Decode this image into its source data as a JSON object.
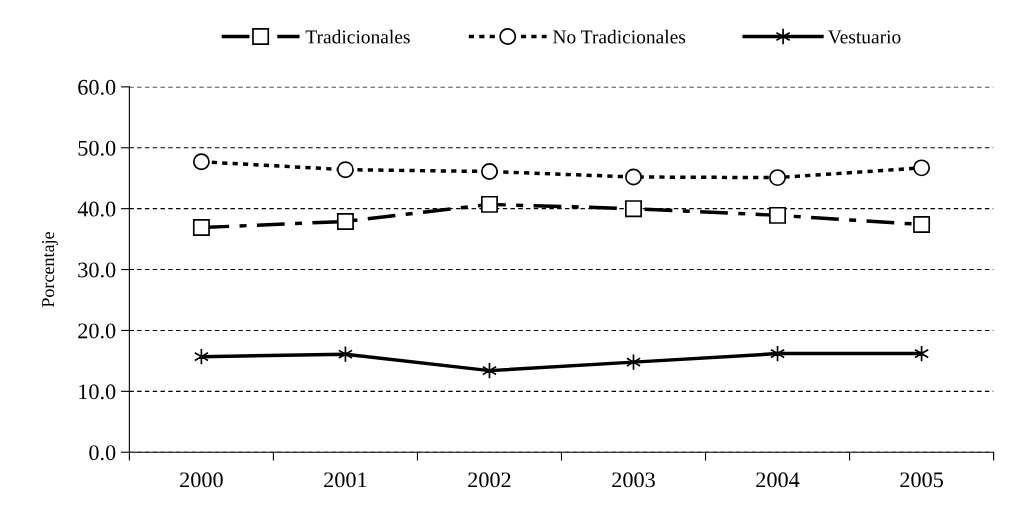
{
  "chart_data": {
    "type": "line",
    "ylabel": "Porcentaje",
    "categories": [
      "2000",
      "2001",
      "2002",
      "2003",
      "2004",
      "2005"
    ],
    "series": [
      {
        "name": "Tradicionales",
        "color": "#000000",
        "marker": "square",
        "line_style": "dashed",
        "values": [
          36.9,
          37.9,
          40.7,
          40.0,
          38.9,
          37.4
        ]
      },
      {
        "name": "No Tradicionales",
        "color": "#000000",
        "marker": "circle",
        "line_style": "dotted",
        "values": [
          47.7,
          46.4,
          46.1,
          45.2,
          45.1,
          46.7
        ]
      },
      {
        "name": "Vestuario",
        "color": "#000000",
        "marker": "cross",
        "line_style": "solid",
        "values": [
          15.7,
          16.1,
          13.4,
          14.8,
          16.2,
          16.2
        ]
      }
    ],
    "ylim": [
      0,
      60
    ],
    "yticks": [
      {
        "value": 0,
        "label": "0.0"
      },
      {
        "value": 10,
        "label": "10.0"
      },
      {
        "value": 20,
        "label": "20.0"
      },
      {
        "value": 30,
        "label": "30.0"
      },
      {
        "value": 40,
        "label": "40.0"
      },
      {
        "value": 50,
        "label": "50.0"
      },
      {
        "value": 60,
        "label": "60.0"
      }
    ],
    "grid": "y",
    "legend": "top"
  }
}
